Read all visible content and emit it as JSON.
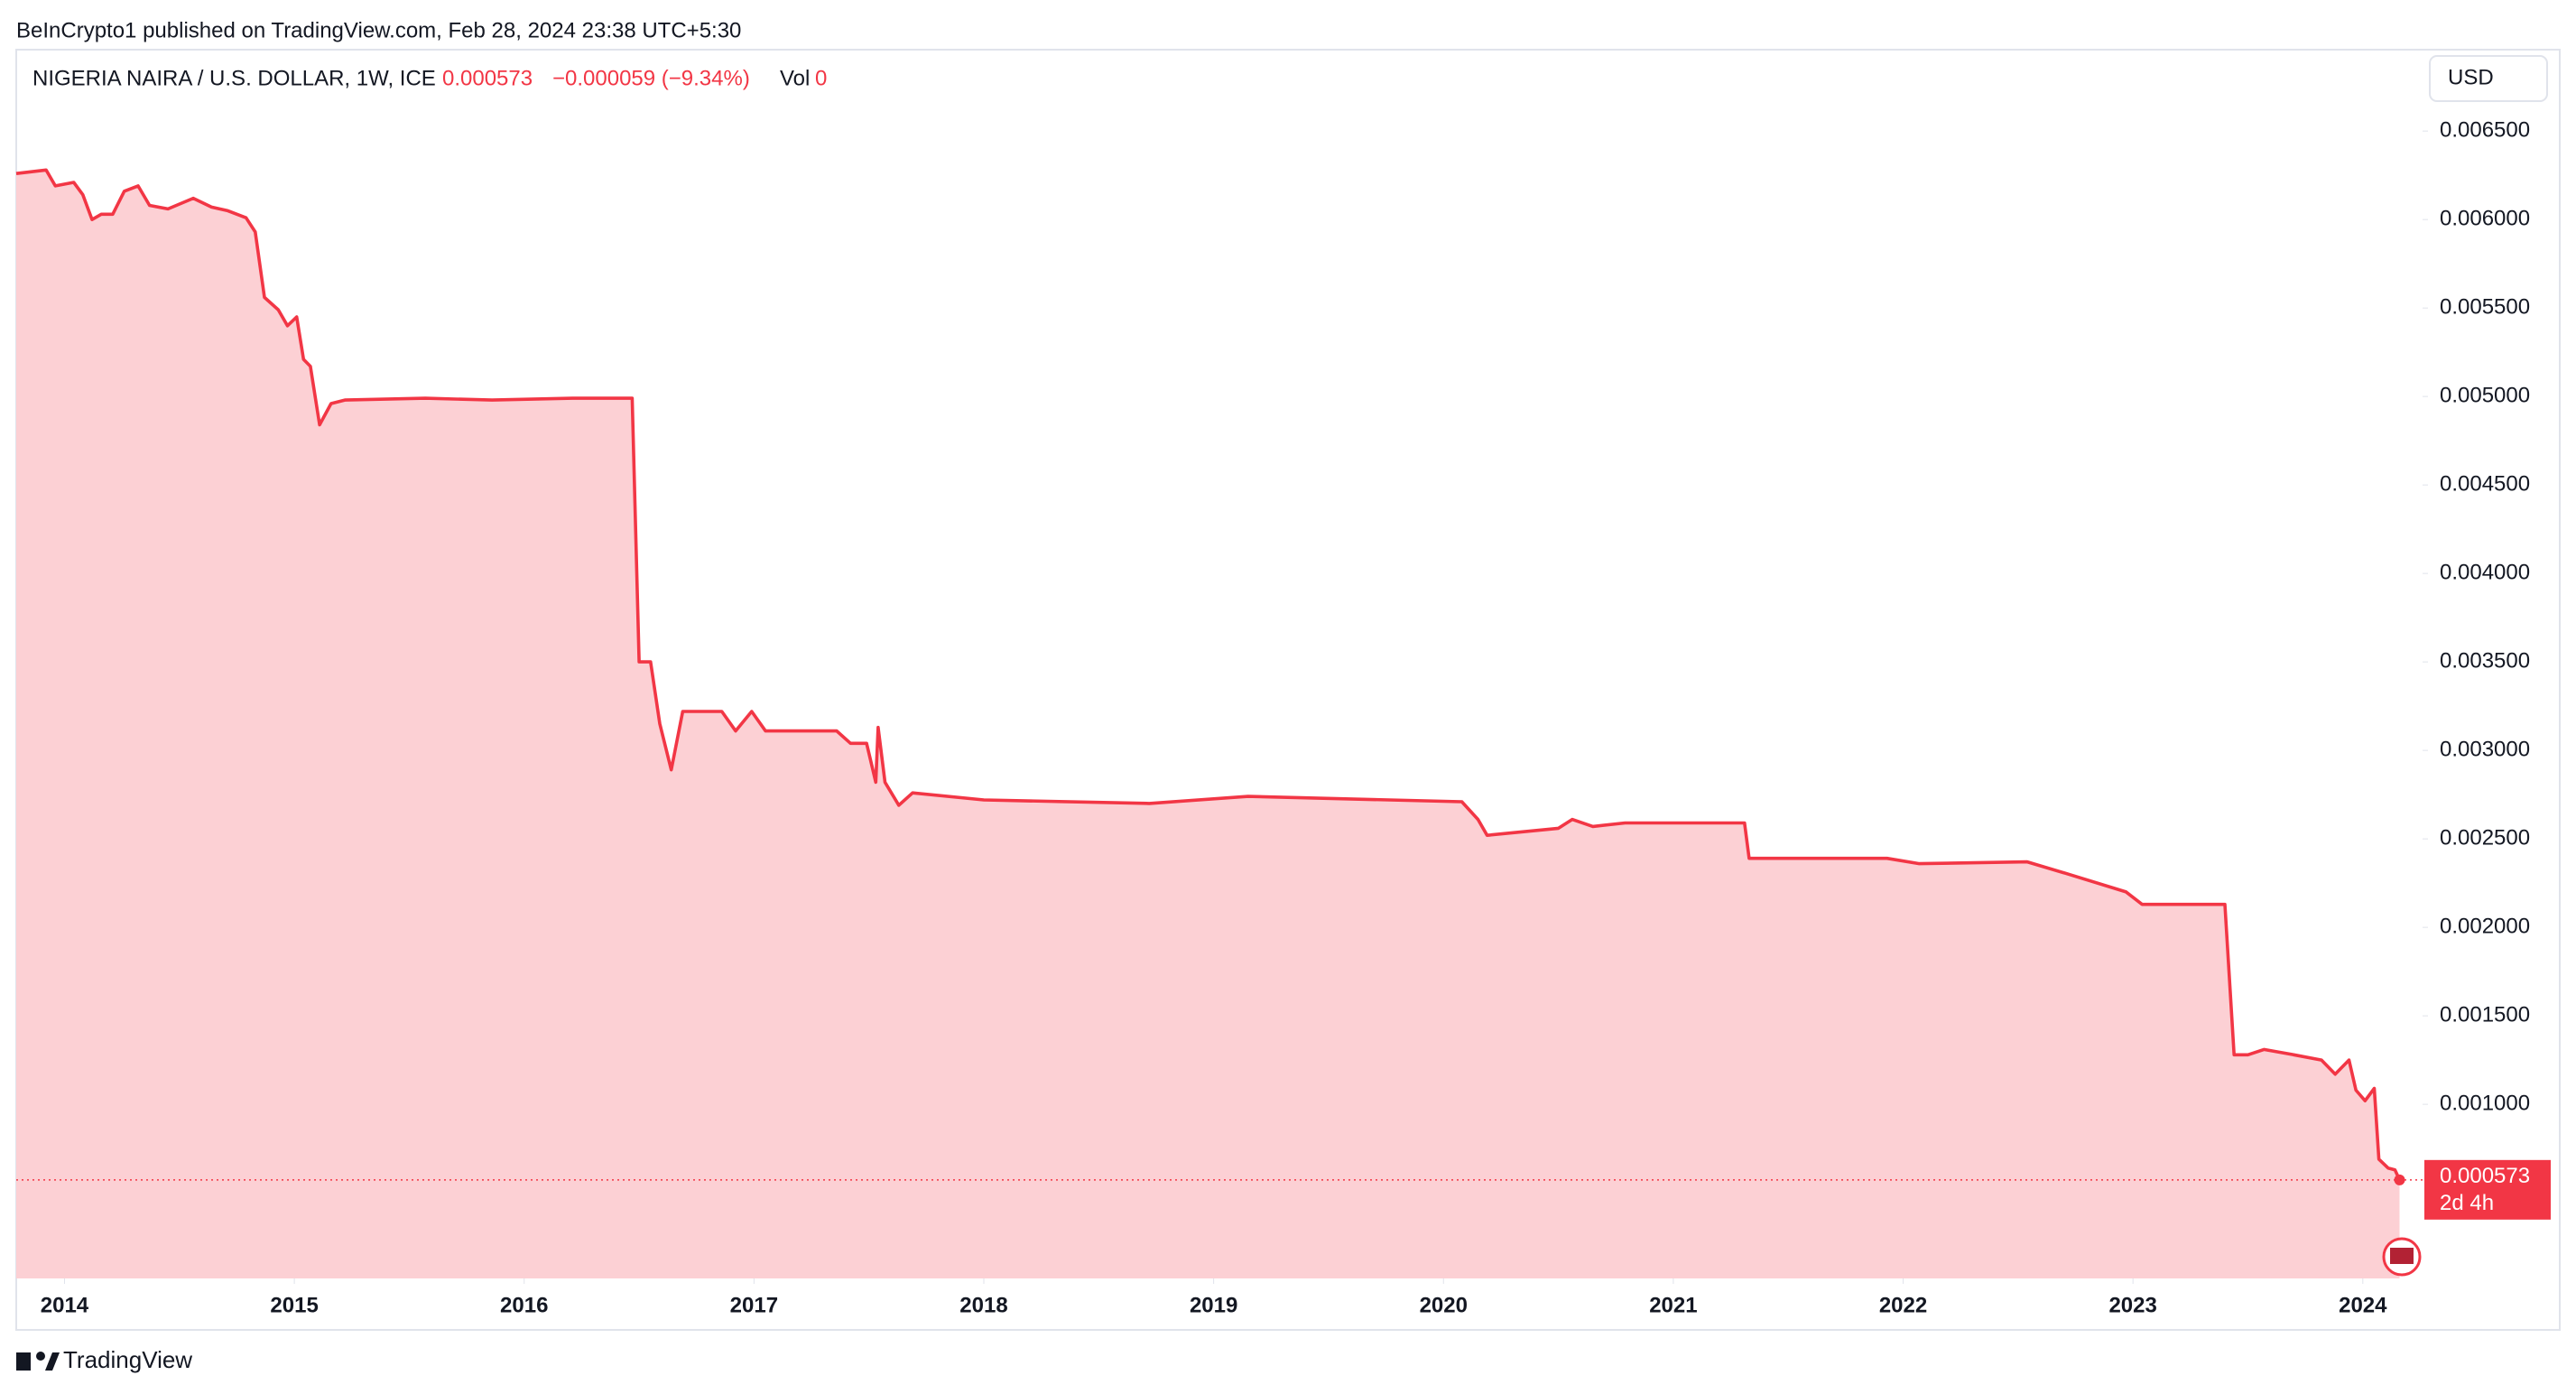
{
  "header": {
    "publisher": "BeInCrypto1 published on TradingView.com, Feb 28, 2024 23:38 UTC+5:30",
    "symbol": "NIGERIA NAIRA / U.S. DOLLAR, 1W, ICE",
    "last": "0.000573",
    "change": "−0.000059 (−9.34%)",
    "vol_label": "Vol",
    "vol": "0",
    "currency": "USD"
  },
  "footer": {
    "brand": "TradingView"
  },
  "chart_data": {
    "type": "area",
    "color": "#f23645",
    "fill": "#fcd0d4",
    "x": [
      2013.79,
      2013.92,
      2013.96,
      2014.04,
      2014.08,
      2014.12,
      2014.16,
      2014.21,
      2014.26,
      2014.32,
      2014.37,
      2014.45,
      2014.56,
      2014.64,
      2014.71,
      2014.79,
      2014.83,
      2014.87,
      2014.93,
      2014.97,
      2015.01,
      2015.04,
      2015.07,
      2015.11,
      2015.16,
      2015.22,
      2015.57,
      2015.86,
      2016.21,
      2016.47,
      2016.5,
      2016.55,
      2016.59,
      2016.64,
      2016.69,
      2016.86,
      2016.92,
      2016.99,
      2017.05,
      2017.36,
      2017.42,
      2017.49,
      2017.53,
      2017.54,
      2017.57,
      2017.63,
      2017.69,
      2018.0,
      2018.72,
      2019.15,
      2020.08,
      2020.15,
      2020.19,
      2020.5,
      2020.56,
      2020.65,
      2020.79,
      2021.31,
      2021.33,
      2021.58,
      2021.93,
      2022.07,
      2022.54,
      2022.72,
      2022.97,
      2023.04,
      2023.4,
      2023.44,
      2023.5,
      2023.57,
      2023.7,
      2023.82,
      2023.88,
      2023.94,
      2023.97,
      2024.01,
      2024.05,
      2024.07,
      2024.11,
      2024.14,
      2024.16
    ],
    "values": [
      0.00626,
      0.00628,
      0.00619,
      0.00621,
      0.00614,
      0.006,
      0.00603,
      0.00603,
      0.00616,
      0.00619,
      0.00608,
      0.00606,
      0.00612,
      0.00607,
      0.00605,
      0.00601,
      0.00593,
      0.00556,
      0.00549,
      0.0054,
      0.00545,
      0.00521,
      0.00517,
      0.00484,
      0.00496,
      0.00498,
      0.00499,
      0.00498,
      0.00499,
      0.00499,
      0.0035,
      0.0035,
      0.00315,
      0.00289,
      0.00322,
      0.00322,
      0.00311,
      0.00322,
      0.00311,
      0.00311,
      0.00304,
      0.00304,
      0.00282,
      0.00313,
      0.00282,
      0.00269,
      0.00276,
      0.00272,
      0.0027,
      0.00274,
      0.00271,
      0.00261,
      0.00252,
      0.00256,
      0.00261,
      0.00257,
      0.00259,
      0.00259,
      0.00239,
      0.00239,
      0.00239,
      0.00236,
      0.00237,
      0.0023,
      0.0022,
      0.00213,
      0.00213,
      0.00128,
      0.00128,
      0.00131,
      0.00128,
      0.00125,
      0.00117,
      0.00125,
      0.00108,
      0.00102,
      0.00109,
      0.00069,
      0.00064,
      0.00063,
      0.000573
    ],
    "last_price_label": "0.000573",
    "countdown": "2d 4h",
    "xlim": [
      2013.79,
      2024.26
    ],
    "xticks": [
      2014,
      2015,
      2016,
      2017,
      2018,
      2019,
      2020,
      2021,
      2022,
      2023,
      2024
    ],
    "ylim": [
      1.6e-05,
      0.00696
    ],
    "yticks": [
      {
        "value": 0.001,
        "label": "0.001000"
      },
      {
        "value": 0.0015,
        "label": "0.001500"
      },
      {
        "value": 0.002,
        "label": "0.002000"
      },
      {
        "value": 0.0025,
        "label": "0.002500"
      },
      {
        "value": 0.003,
        "label": "0.003000"
      },
      {
        "value": 0.0035,
        "label": "0.003500"
      },
      {
        "value": 0.004,
        "label": "0.004000"
      },
      {
        "value": 0.0045,
        "label": "0.004500"
      },
      {
        "value": 0.005,
        "label": "0.005000"
      },
      {
        "value": 0.0055,
        "label": "0.005500"
      },
      {
        "value": 0.006,
        "label": "0.006000"
      },
      {
        "value": 0.0065,
        "label": "0.006500"
      }
    ]
  }
}
